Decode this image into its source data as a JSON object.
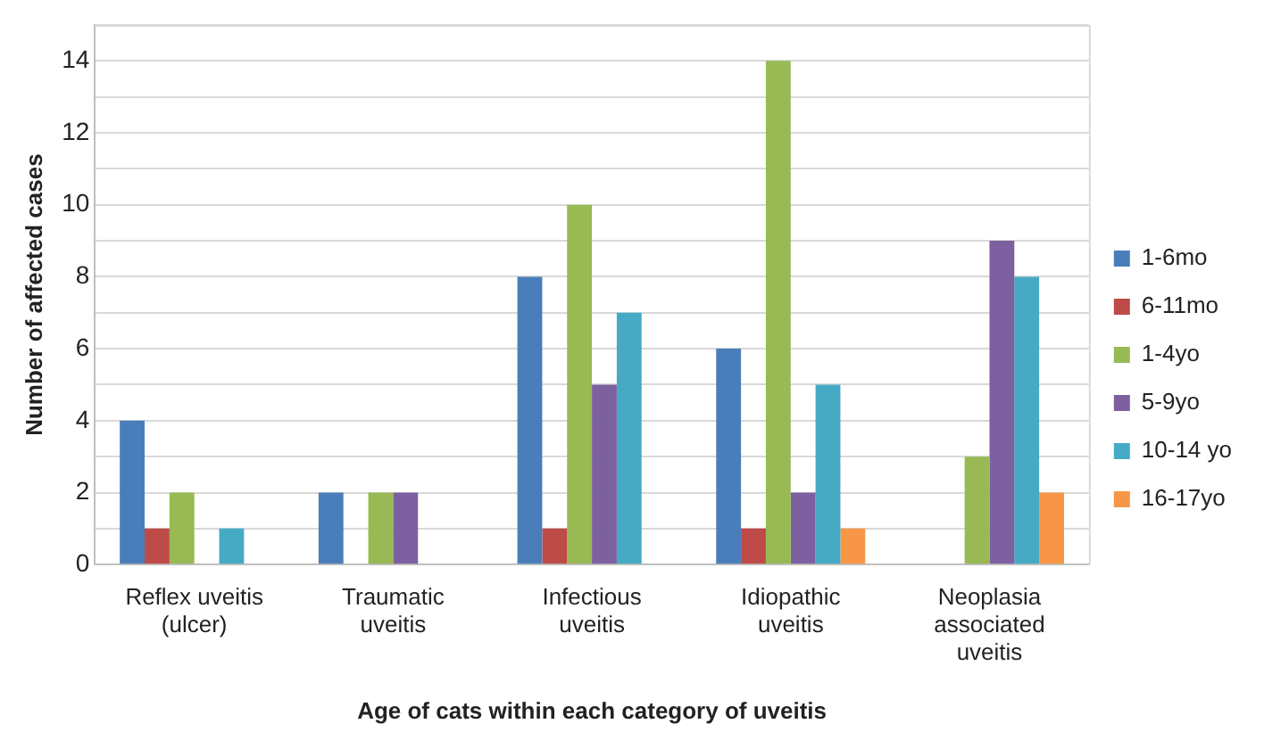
{
  "chart_data": {
    "type": "bar",
    "xlabel": "Age of cats within each category of uveitis",
    "ylabel": "Number of affected cases",
    "categories": [
      "Reflex uveitis (ulcer)",
      "Traumatic uveitis",
      "Infectious uveitis",
      "Idiopathic uveitis",
      "Neoplasia associated uveitis"
    ],
    "series": [
      {
        "name": "1-6mo",
        "color": "#4a7ebb",
        "values": [
          4,
          2,
          8,
          6,
          0
        ]
      },
      {
        "name": "6-11mo",
        "color": "#be4b48",
        "values": [
          1,
          0,
          1,
          1,
          0
        ]
      },
      {
        "name": "1-4yo",
        "color": "#98b954",
        "values": [
          2,
          2,
          10,
          14,
          3
        ]
      },
      {
        "name": "5-9yo",
        "color": "#7d60a0",
        "values": [
          0,
          2,
          5,
          2,
          9
        ]
      },
      {
        "name": "10-14 yo",
        "color": "#46aac5",
        "values": [
          1,
          0,
          7,
          5,
          8
        ]
      },
      {
        "name": "16-17yo",
        "color": "#f79646",
        "values": [
          0,
          0,
          0,
          1,
          2
        ]
      }
    ],
    "ylim": [
      0,
      15
    ],
    "yticks": [
      0,
      {
        "value": 1,
        "label": null
      },
      2,
      {
        "value": 3,
        "label": null
      },
      4,
      {
        "value": 5,
        "label": null
      },
      6,
      {
        "value": 7,
        "label": null
      },
      8,
      {
        "value": 9,
        "label": null
      },
      10,
      {
        "value": 11,
        "label": null
      },
      12,
      {
        "value": 13,
        "label": null
      },
      14,
      {
        "value": 15,
        "label": null
      }
    ],
    "grid": true,
    "legend": "right"
  }
}
